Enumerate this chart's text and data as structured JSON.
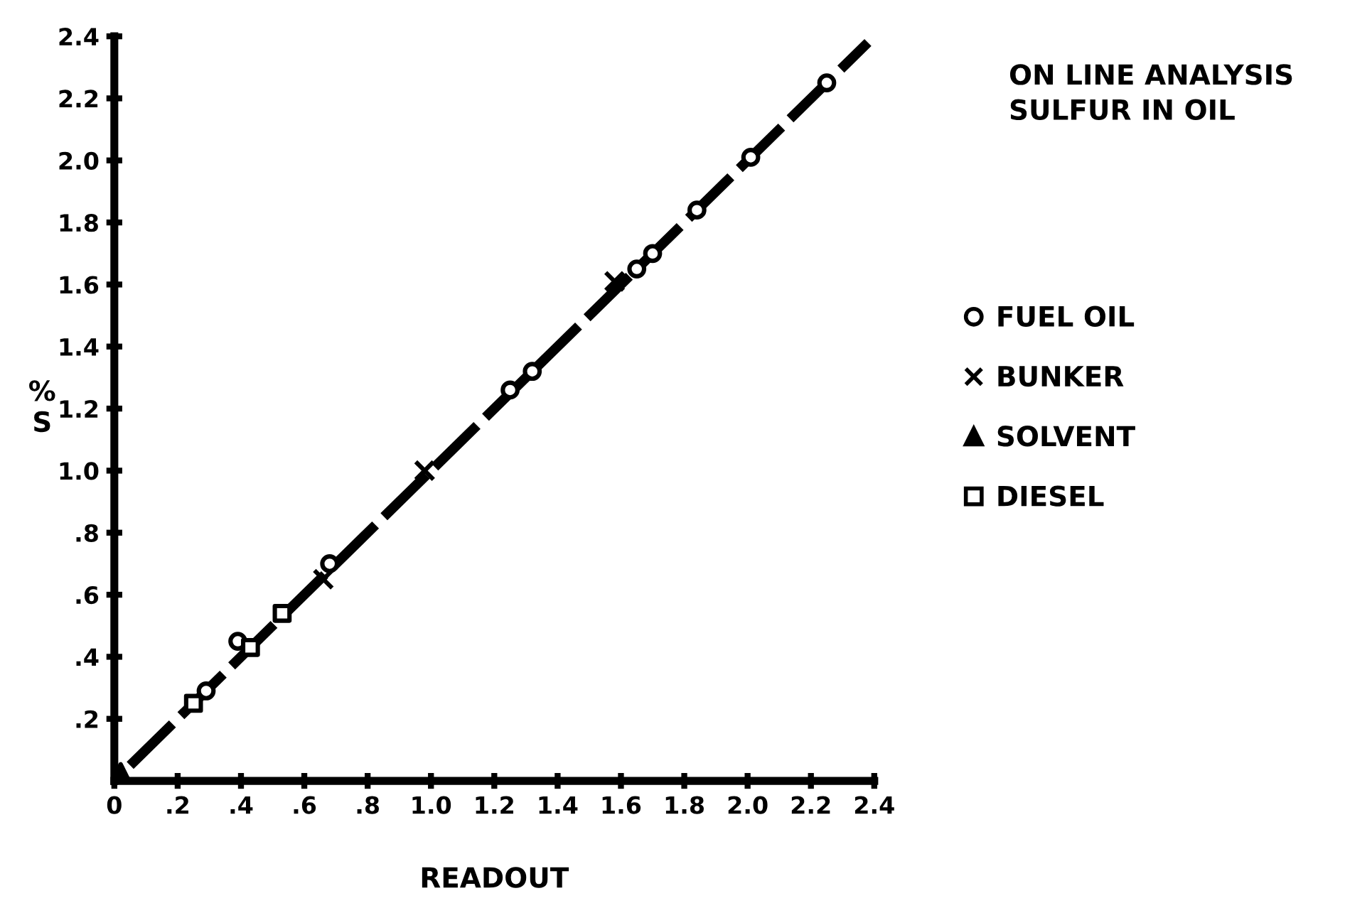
{
  "chart_data": {
    "type": "scatter",
    "title": "ON LINE ANALYSIS\nSULFUR IN OIL",
    "xlabel": "READOUT",
    "ylabel": "% S",
    "xlim": [
      0,
      2.4
    ],
    "ylim": [
      0,
      2.4
    ],
    "xticks": [
      {
        "value": 0,
        "label": "0"
      },
      {
        "value": 0.2,
        "label": ".2"
      },
      {
        "value": 0.4,
        "label": ".4"
      },
      {
        "value": 0.6,
        "label": ".6"
      },
      {
        "value": 0.8,
        "label": ".8"
      },
      {
        "value": 1.0,
        "label": "1.0"
      },
      {
        "value": 1.2,
        "label": "1.2"
      },
      {
        "value": 1.4,
        "label": "1.4"
      },
      {
        "value": 1.6,
        "label": "1.6"
      },
      {
        "value": 1.8,
        "label": "1.8"
      },
      {
        "value": 2.0,
        "label": "2.0"
      },
      {
        "value": 2.2,
        "label": "2.2"
      },
      {
        "value": 2.4,
        "label": "2.4"
      }
    ],
    "yticks": [
      {
        "value": 0.2,
        "label": ".2"
      },
      {
        "value": 0.4,
        "label": ".4"
      },
      {
        "value": 0.6,
        "label": ".6"
      },
      {
        "value": 0.8,
        "label": ".8"
      },
      {
        "value": 1.0,
        "label": "1.0"
      },
      {
        "value": 1.2,
        "label": "1.2"
      },
      {
        "value": 1.4,
        "label": "1.4"
      },
      {
        "value": 1.6,
        "label": "1.6"
      },
      {
        "value": 1.8,
        "label": "1.8"
      },
      {
        "value": 2.0,
        "label": "2.0"
      },
      {
        "value": 2.2,
        "label": "2.2"
      },
      {
        "value": 2.4,
        "label": "2.4"
      }
    ],
    "grid": false,
    "legend": "right",
    "series": [
      {
        "type": "line",
        "color": "#000000",
        "line_style": "dashed",
        "marker": "none",
        "x": [
          0.05,
          2.38
        ],
        "values": [
          0.05,
          2.38
        ]
      },
      {
        "name": "FUEL OIL",
        "color": "#000000",
        "marker": "circle",
        "x": [
          0.29,
          0.39,
          0.68,
          1.25,
          1.32,
          1.65,
          1.7,
          1.84,
          2.01,
          2.25
        ],
        "values": [
          0.29,
          0.45,
          0.7,
          1.26,
          1.32,
          1.65,
          1.7,
          1.84,
          2.01,
          2.25
        ]
      },
      {
        "name": "BUNKER",
        "color": "#000000",
        "marker": "cross",
        "x": [
          0.66,
          0.98,
          1.58
        ],
        "values": [
          0.65,
          1.0,
          1.61
        ]
      },
      {
        "name": "SOLVENT",
        "color": "#000000",
        "marker": "triangle",
        "x": [
          0.02
        ],
        "values": [
          0.03
        ]
      },
      {
        "name": "DIESEL",
        "color": "#000000",
        "marker": "square",
        "x": [
          0.25,
          0.43,
          0.53
        ],
        "values": [
          0.25,
          0.43,
          0.54
        ]
      }
    ]
  }
}
